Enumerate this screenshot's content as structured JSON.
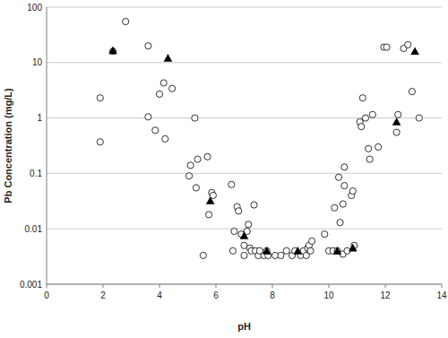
{
  "chart_data": {
    "type": "scatter",
    "x_label": "pH",
    "y_label": "Pb Concentration (mg/L)",
    "xlim": [
      0,
      14
    ],
    "xticks": [
      0,
      2,
      4,
      6,
      8,
      10,
      12,
      14
    ],
    "ylim": [
      0.001,
      100
    ],
    "yticks": [
      0.001,
      0.01,
      0.1,
      1,
      10,
      100
    ],
    "log": "y",
    "grid": true,
    "series": [
      {
        "marker": "circle",
        "color": "#000000",
        "x": [
          1.9,
          1.9,
          2.35,
          2.8,
          3.6,
          3.6,
          3.85,
          4.0,
          4.15,
          4.2,
          4.45,
          5.05,
          5.1,
          5.25,
          5.3,
          5.35,
          5.55,
          5.7,
          5.75,
          5.85,
          5.9,
          6.55,
          6.6,
          6.65,
          6.75,
          6.8,
          6.9,
          7.0,
          7.0,
          7.1,
          7.15,
          7.2,
          7.25,
          7.35,
          7.4,
          7.5,
          7.55,
          7.7,
          7.8,
          7.85,
          8.1,
          8.3,
          8.5,
          8.7,
          8.8,
          9.0,
          9.1,
          9.2,
          9.25,
          9.3,
          9.35,
          9.4,
          9.85,
          10.0,
          10.15,
          10.2,
          10.3,
          10.35,
          10.4,
          10.5,
          10.5,
          10.55,
          10.55,
          10.65,
          10.8,
          10.85,
          10.9,
          11.1,
          11.15,
          11.2,
          11.3,
          11.4,
          11.45,
          11.55,
          11.75,
          11.95,
          12.05,
          12.4,
          12.45,
          12.65,
          12.8,
          12.95,
          13.2
        ],
        "values": [
          2.3,
          0.37,
          16,
          55,
          20,
          1.05,
          0.6,
          2.7,
          4.3,
          0.42,
          3.4,
          0.09,
          0.14,
          1.0,
          0.055,
          0.18,
          0.0033,
          0.2,
          0.018,
          0.045,
          0.04,
          0.063,
          0.004,
          0.009,
          0.025,
          0.021,
          0.008,
          0.0033,
          0.005,
          0.009,
          0.012,
          0.0045,
          0.004,
          0.027,
          0.004,
          0.0033,
          0.004,
          0.0033,
          0.004,
          0.0033,
          0.0033,
          0.0033,
          0.004,
          0.0033,
          0.004,
          0.0033,
          0.004,
          0.0033,
          0.0045,
          0.005,
          0.004,
          0.006,
          0.008,
          0.004,
          0.004,
          0.024,
          0.004,
          0.085,
          0.013,
          0.0035,
          0.028,
          0.06,
          0.13,
          0.004,
          0.04,
          0.048,
          0.005,
          0.85,
          0.7,
          2.3,
          1.0,
          0.28,
          0.18,
          1.15,
          0.3,
          19,
          19,
          0.55,
          1.15,
          18,
          21,
          3.0,
          1.0
        ]
      },
      {
        "marker": "triangle",
        "color": "#000000",
        "x": [
          2.35,
          4.3,
          5.8,
          7.0,
          7.8,
          8.9,
          10.3,
          10.85,
          12.4,
          13.05
        ],
        "values": [
          16.5,
          12,
          0.032,
          0.0075,
          0.004,
          0.004,
          0.004,
          0.0045,
          0.85,
          16
        ]
      }
    ]
  }
}
